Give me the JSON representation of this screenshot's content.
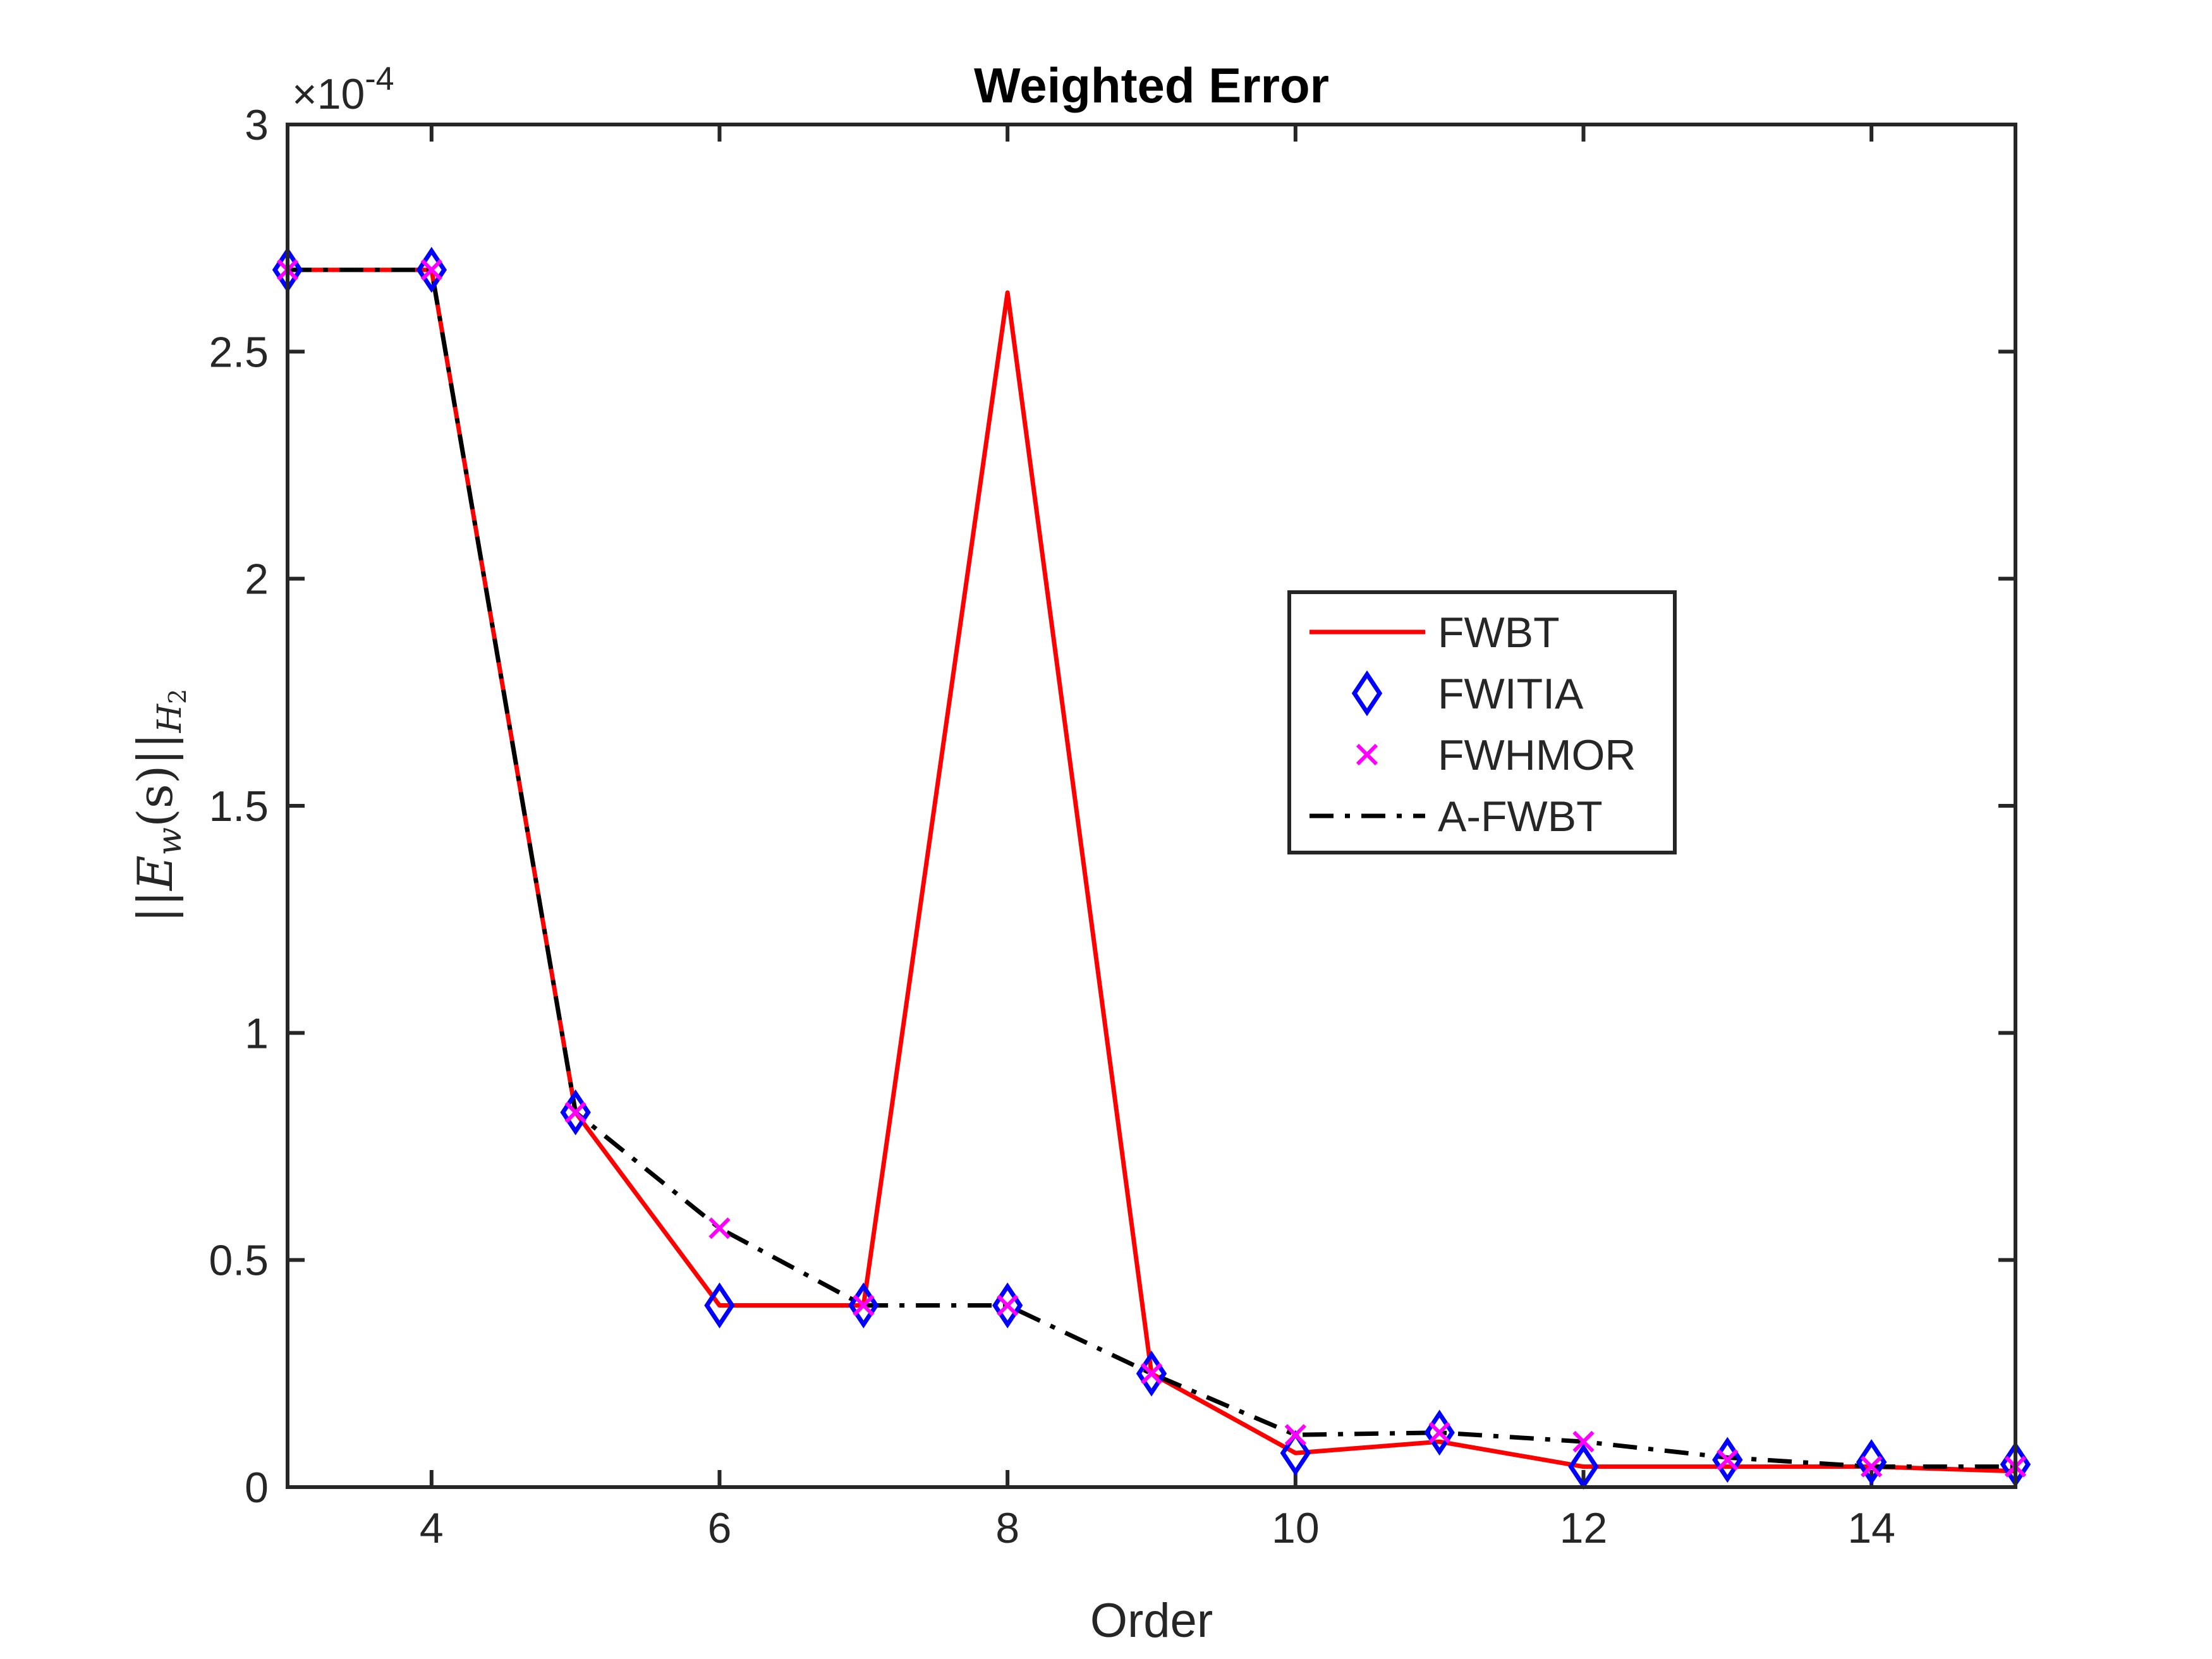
{
  "chart_data": {
    "type": "line",
    "title": "Weighted Error",
    "xlabel": "Order",
    "ylabel_parts": {
      "bars": "||",
      "E": "E",
      "sub_w": "w",
      "arg": "(s)",
      "bars2": "||",
      "norm_H": "H",
      "norm_sub": "2"
    },
    "xlim": [
      3,
      15
    ],
    "ylim": [
      0,
      0.0003
    ],
    "y_exponent_label": {
      "base": "×10",
      "exp": "-4"
    },
    "x_ticks": [
      4,
      6,
      8,
      10,
      12,
      14
    ],
    "x_tick_labels": [
      "4",
      "6",
      "8",
      "10",
      "12",
      "14"
    ],
    "y_ticks": [
      0,
      5e-05,
      0.0001,
      0.00015,
      0.0002,
      0.00025,
      0.0003
    ],
    "y_tick_labels": [
      "0",
      "0.5",
      "1",
      "1.5",
      "2",
      "2.5",
      "3"
    ],
    "grid": false,
    "legend_position": "center-right",
    "x": [
      3,
      4,
      5,
      6,
      7,
      8,
      9,
      10,
      11,
      12,
      13,
      14,
      15
    ],
    "series": [
      {
        "name": "FWBT",
        "color": "#ff0000",
        "style": "solid",
        "marker": "none",
        "values": [
          0.000268,
          0.000268,
          8.25e-05,
          4e-05,
          4e-05,
          0.000263,
          2.5e-05,
          7.5e-06,
          1e-05,
          4.5e-06,
          4.5e-06,
          4.5e-06,
          3.5e-06
        ]
      },
      {
        "name": "FWITIA",
        "color": "#0000ff",
        "style": "none",
        "marker": "diamond",
        "values": [
          0.000268,
          0.000268,
          8.25e-05,
          4e-05,
          4e-05,
          4e-05,
          2.5e-05,
          7.5e-06,
          1.2e-05,
          4.5e-06,
          6e-06,
          5.5e-06,
          5e-06
        ]
      },
      {
        "name": "FWHMOR",
        "color": "#ff00ff",
        "style": "none",
        "marker": "x",
        "values": [
          0.000268,
          0.000268,
          8.25e-05,
          5.7e-05,
          4e-05,
          4e-05,
          2.5e-05,
          1.15e-05,
          1.2e-05,
          1e-05,
          6e-06,
          4.5e-06,
          4.5e-06
        ]
      },
      {
        "name": "A-FWBT",
        "color": "#000000",
        "style": "dashdot",
        "marker": "none",
        "values": [
          0.000268,
          0.000268,
          8.25e-05,
          5.7e-05,
          4e-05,
          4e-05,
          2.5e-05,
          1.15e-05,
          1.2e-05,
          1e-05,
          6.5e-06,
          4.5e-06,
          4.5e-06
        ]
      }
    ]
  }
}
